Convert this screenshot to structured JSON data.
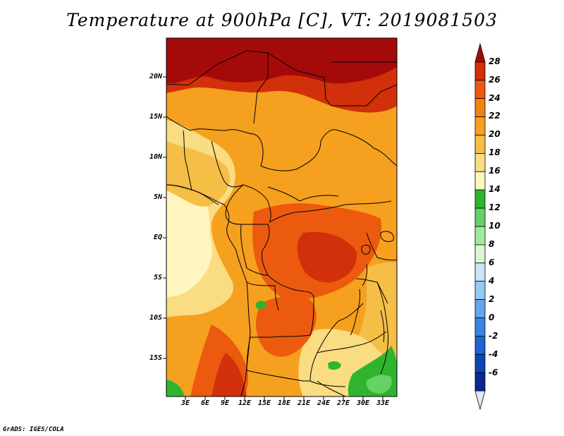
{
  "title": "Temperature at 900hPa [C], VT: 2019081503",
  "credit": "GrADS: IGES/COLA",
  "lat_labels": [
    "20N",
    "15N",
    "10N",
    "5N",
    "EQ",
    "5S",
    "10S",
    "15S"
  ],
  "lon_labels": [
    "3E",
    "6E",
    "9E",
    "12E",
    "15E",
    "18E",
    "21E",
    "24E",
    "27E",
    "30E",
    "33E"
  ],
  "colorbar": {
    "labels": [
      "28",
      "26",
      "24",
      "22",
      "20",
      "18",
      "16",
      "14",
      "12",
      "10",
      "8",
      "6",
      "4",
      "2",
      "0",
      "-2",
      "-4",
      "-6"
    ],
    "colors": [
      "#a50a0a",
      "#d2300a",
      "#eb5a0f",
      "#f5820f",
      "#f5a01e",
      "#f5be46",
      "#fadc82",
      "#fff5be",
      "#30b430",
      "#64d264",
      "#a0eb9b",
      "#dcf5d2",
      "#c8e6fa",
      "#96c8f5",
      "#64a5eb",
      "#3c82e1",
      "#1e64d2",
      "#0a46b4",
      "#0a2896",
      "#0a0a64"
    ],
    "under_color": "#e6e6fa",
    "over_color": "#a50a0a"
  }
}
